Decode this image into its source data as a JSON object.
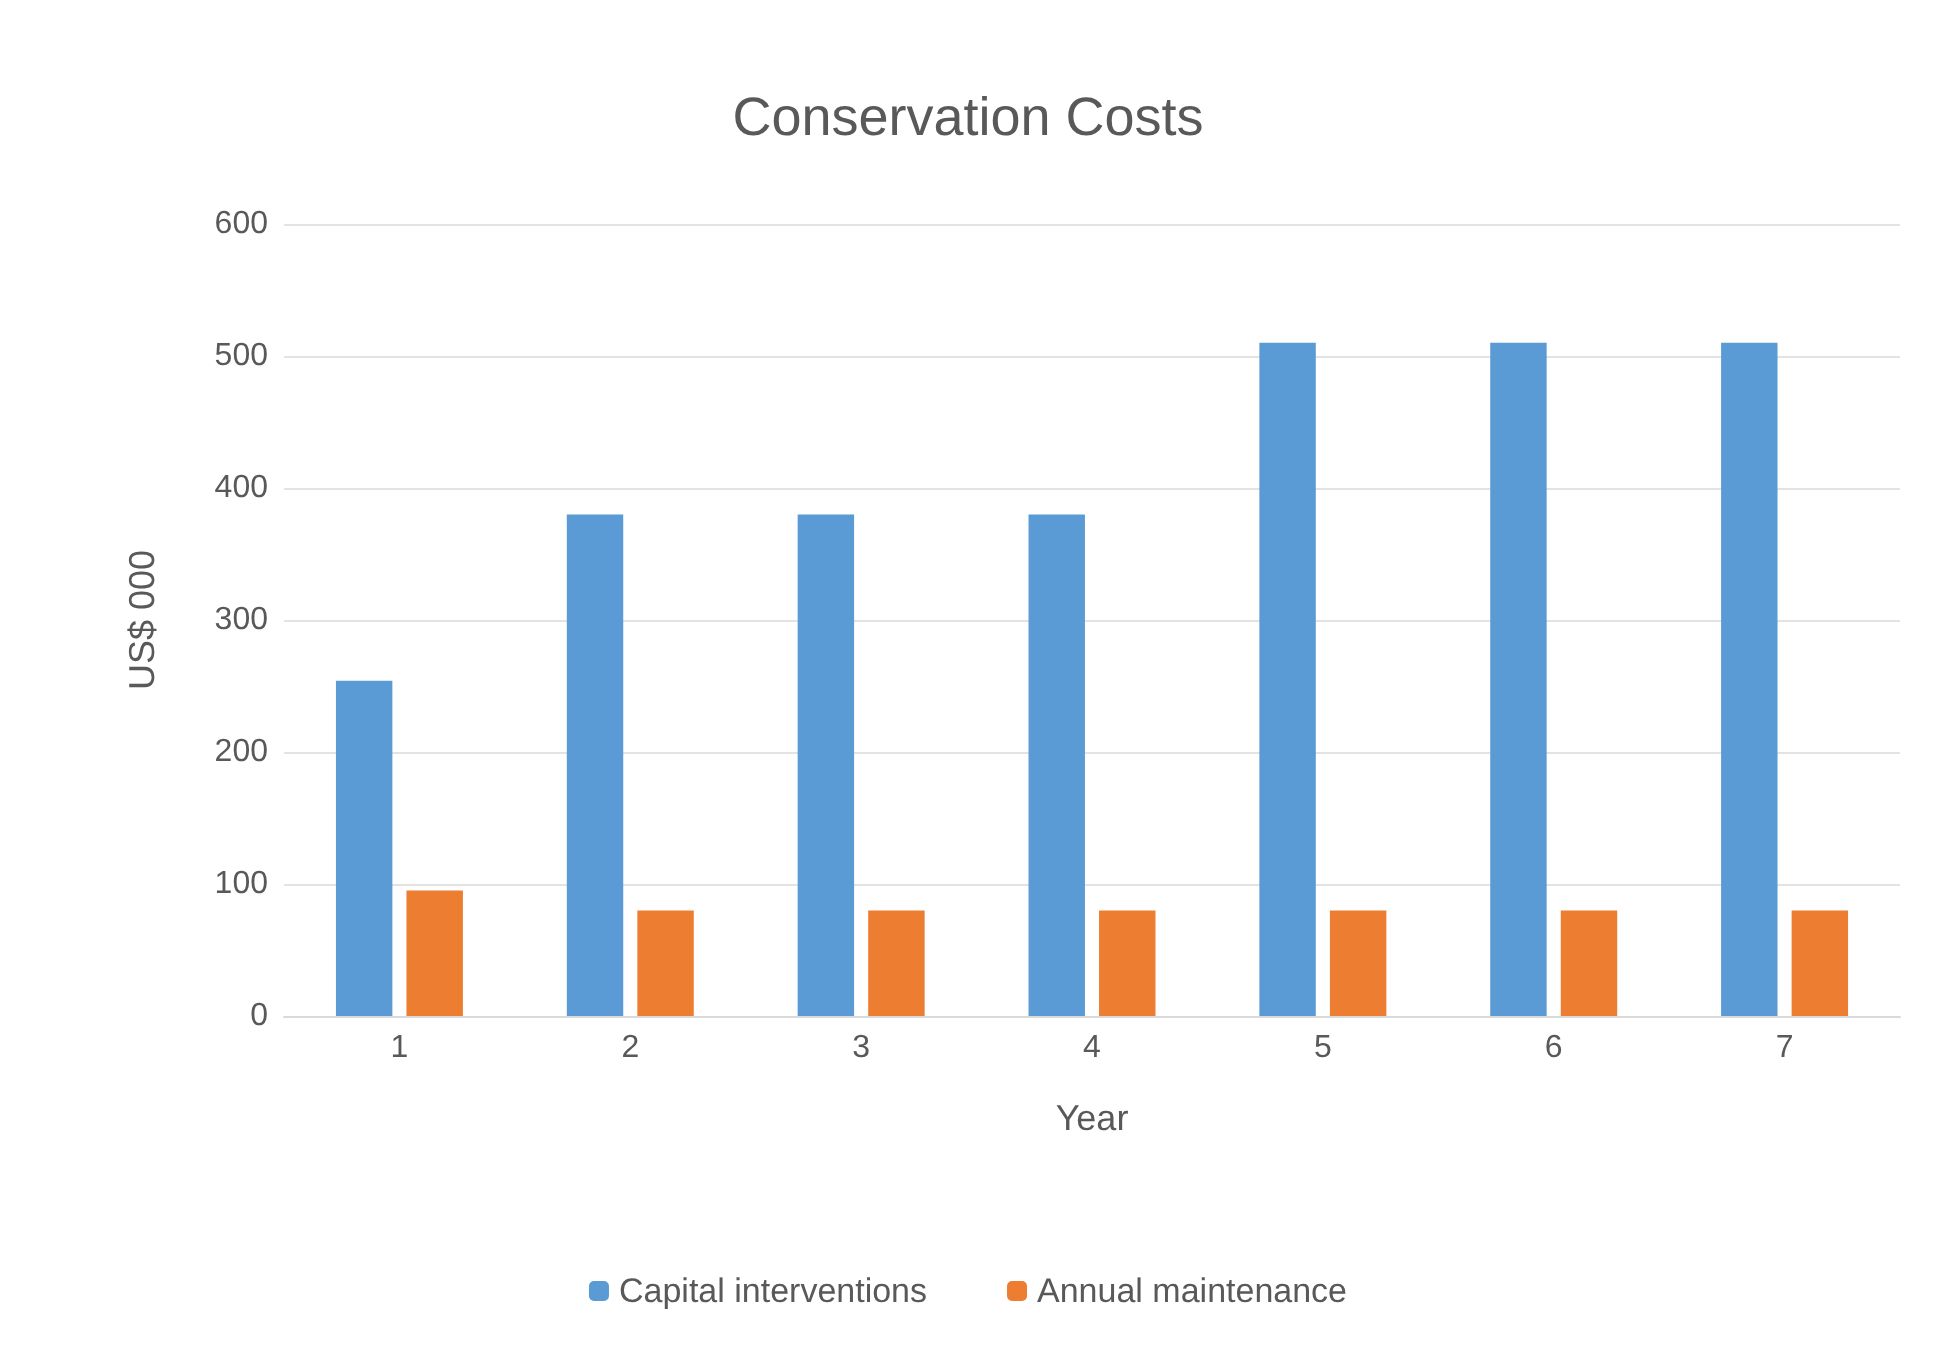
{
  "chart_data": {
    "type": "bar",
    "title": "Conservation Costs",
    "xlabel": "Year",
    "ylabel": "US$ 000",
    "categories": [
      "1",
      "2",
      "3",
      "4",
      "5",
      "6",
      "7"
    ],
    "series": [
      {
        "name": "Capital interventions",
        "color": "#5b9bd5",
        "values": [
          254,
          380,
          380,
          380,
          510,
          510,
          510
        ]
      },
      {
        "name": "Annual maintenance",
        "color": "#ed7d31",
        "values": [
          95,
          80,
          80,
          80,
          80,
          80,
          80
        ]
      }
    ],
    "ylim": [
      0,
      600
    ],
    "yticks": [
      0,
      100,
      200,
      300,
      400,
      500,
      600
    ],
    "grid": "y",
    "legend": "bottom"
  }
}
